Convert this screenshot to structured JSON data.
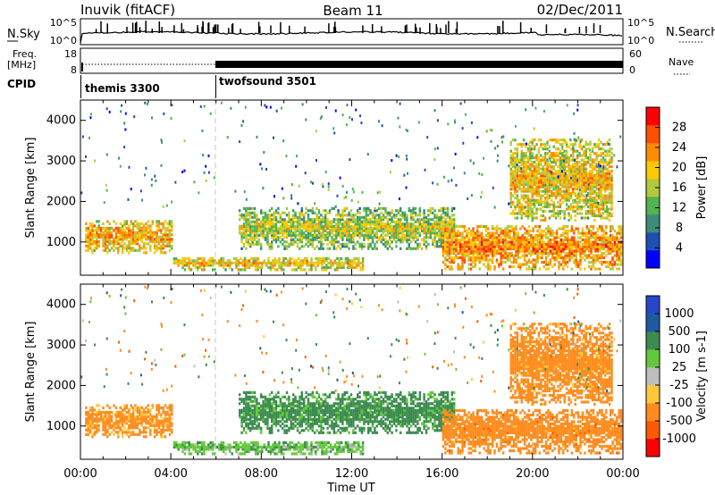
{
  "header": {
    "station": "Inuvik (fitACF)",
    "beam": "Beam 11",
    "date": "02/Dec/2011"
  },
  "top_panels": {
    "nsky_label": "N.Sky",
    "nsearch_label": "N.Search",
    "freq_label": "Freq.",
    "freq_unit": "[MHz]",
    "nave_label": "Nave",
    "cpid_label": "CPID",
    "noise_ticks": [
      "10^5",
      "10^0"
    ],
    "freq_ticks": [
      "18",
      "8"
    ],
    "nave_ticks": [
      "60",
      "0"
    ],
    "cpid_segments": [
      {
        "name": "themis 3300",
        "start_hour": 0,
        "end_hour": 6
      },
      {
        "name": "twofsound 3501",
        "start_hour": 6,
        "end_hour": 24
      }
    ]
  },
  "x_axis": {
    "label": "Time UT",
    "ticks": [
      "00:00",
      "04:00",
      "08:00",
      "12:00",
      "16:00",
      "20:00",
      "00:00"
    ]
  },
  "colors": {
    "power_scale": [
      "#0000ff",
      "#1e50b4",
      "#3c8c78",
      "#50b450",
      "#b4c83c",
      "#ffc800",
      "#ff8c00",
      "#ff5000",
      "#ff0000"
    ],
    "velocity_scale": [
      "#2846c8",
      "#1e5aa0",
      "#3c8c50",
      "#64c83c",
      "#bebebe",
      "#ffc83c",
      "#ff8c1e",
      "#ff5a00",
      "#ff0000"
    ]
  },
  "chart_data": [
    {
      "type": "heatmap",
      "panel": "power",
      "ylabel": "Slant Range [km]",
      "xlabel": "Time UT",
      "xlim_hours": [
        0,
        24
      ],
      "ylim": [
        180,
        4500
      ],
      "yticks": [
        "1000",
        "2000",
        "3000",
        "4000"
      ],
      "colorbar_label": "Power [dB]",
      "colorbar_ticks": [
        "4",
        "8",
        "12",
        "16",
        "20",
        "24",
        "28"
      ],
      "colorbar_range": [
        0,
        32
      ],
      "regions": [
        {
          "t": [
            0.2,
            4.0
          ],
          "r": [
            700,
            1500
          ],
          "v": 24
        },
        {
          "t": [
            4.1,
            12.5
          ],
          "r": [
            280,
            600
          ],
          "v": 22
        },
        {
          "t": [
            7.0,
            16.5
          ],
          "r": [
            800,
            1800
          ],
          "v": 18
        },
        {
          "t": [
            16.0,
            23.9
          ],
          "r": [
            300,
            1400
          ],
          "v": 26
        },
        {
          "t": [
            19.0,
            23.5
          ],
          "r": [
            1500,
            3500
          ],
          "v": 22
        }
      ]
    },
    {
      "type": "heatmap",
      "panel": "velocity",
      "ylabel": "Slant Range [km]",
      "xlabel": "Time UT",
      "xlim_hours": [
        0,
        24
      ],
      "ylim": [
        180,
        4500
      ],
      "yticks": [
        "1000",
        "2000",
        "3000",
        "4000"
      ],
      "colorbar_label": "Velocity [m s-1]",
      "colorbar_ticks": [
        "1000",
        "500",
        "100",
        "25",
        "-25",
        "-100",
        "-500",
        "-1000"
      ],
      "regions": [
        {
          "t": [
            0.2,
            4.0
          ],
          "r": [
            700,
            1500
          ],
          "v": -150
        },
        {
          "t": [
            4.1,
            12.5
          ],
          "r": [
            280,
            600
          ],
          "v": 60
        },
        {
          "t": [
            7.0,
            16.5
          ],
          "r": [
            800,
            1800
          ],
          "v": 150
        },
        {
          "t": [
            16.0,
            23.9
          ],
          "r": [
            300,
            1400
          ],
          "v": -250
        },
        {
          "t": [
            19.0,
            23.5
          ],
          "r": [
            1500,
            3500
          ],
          "v": -200
        }
      ]
    }
  ]
}
